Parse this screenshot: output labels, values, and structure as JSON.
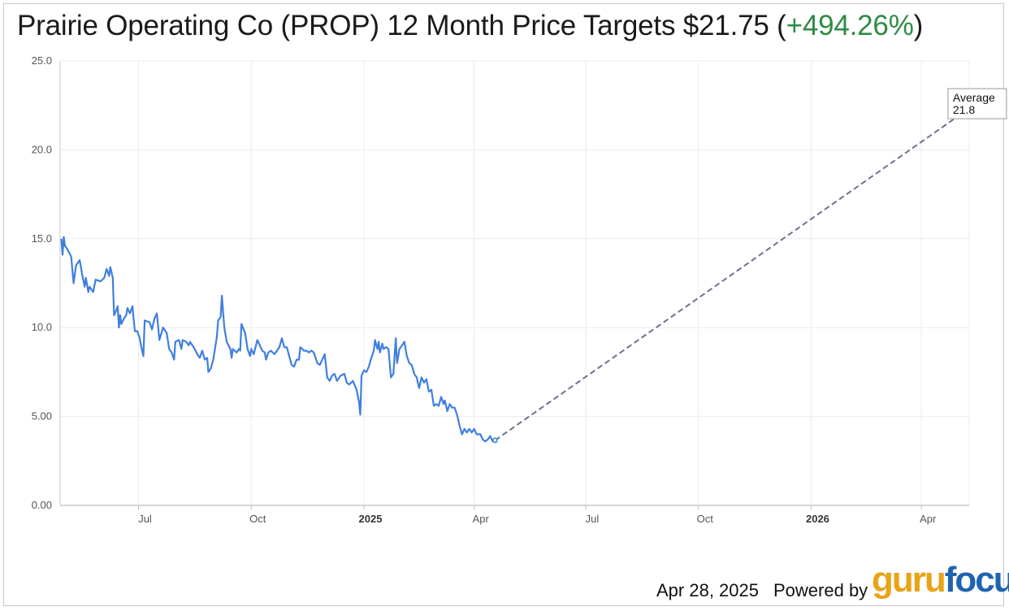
{
  "header": {
    "title_main": "Prairie Operating Co (PROP) 12 Month Price Targets $21.75 (",
    "title_pct": "+494.26%",
    "title_close": ")"
  },
  "footer": {
    "date": "Apr 28, 2025",
    "powered_by": "Powered by",
    "logo_part1": "guru",
    "logo_part2": "focus"
  },
  "colors": {
    "price_line": "#3f7fe0",
    "target_line": "#6b7390",
    "grid": "#ececec",
    "positive": "#2e8b46"
  },
  "chart_data": {
    "type": "line",
    "ylim": [
      0,
      25
    ],
    "y_ticks": [
      "0.00",
      "5.00",
      "10.0",
      "15.0",
      "20.0",
      "25.0"
    ],
    "xlim": [
      "2024-04-28",
      "2026-05-10"
    ],
    "x_ticks": [
      {
        "date": "2024-07-01",
        "label": "Jul",
        "bold": false
      },
      {
        "date": "2024-10-01",
        "label": "Oct",
        "bold": false
      },
      {
        "date": "2025-01-01",
        "label": "2025",
        "bold": true
      },
      {
        "date": "2025-04-01",
        "label": "Apr",
        "bold": false
      },
      {
        "date": "2025-07-01",
        "label": "Jul",
        "bold": false
      },
      {
        "date": "2025-10-01",
        "label": "Oct",
        "bold": false
      },
      {
        "date": "2026-01-01",
        "label": "2026",
        "bold": true
      },
      {
        "date": "2026-04-01",
        "label": "Apr",
        "bold": false
      }
    ],
    "grid": true,
    "series": [
      {
        "values": [
          [
            "2024-04-29",
            15.0
          ],
          [
            "2024-04-30",
            14.1
          ],
          [
            "2024-05-01",
            15.1
          ],
          [
            "2024-05-02",
            14.6
          ],
          [
            "2024-05-04",
            14.4
          ],
          [
            "2024-05-07",
            14.0
          ],
          [
            "2024-05-09",
            12.5
          ],
          [
            "2024-05-11",
            13.5
          ],
          [
            "2024-05-14",
            13.8
          ],
          [
            "2024-05-16",
            13.0
          ],
          [
            "2024-05-18",
            12.3
          ],
          [
            "2024-05-19",
            12.8
          ],
          [
            "2024-05-21",
            12.0
          ],
          [
            "2024-05-22",
            12.3
          ],
          [
            "2024-05-24",
            12.1
          ],
          [
            "2024-05-25",
            12.0
          ],
          [
            "2024-05-27",
            12.7
          ],
          [
            "2024-05-31",
            12.6
          ],
          [
            "2024-06-03",
            12.8
          ],
          [
            "2024-06-05",
            13.3
          ],
          [
            "2024-06-07",
            12.9
          ],
          [
            "2024-06-08",
            13.4
          ],
          [
            "2024-06-10",
            12.8
          ],
          [
            "2024-06-11",
            10.7
          ],
          [
            "2024-06-13",
            11.0
          ],
          [
            "2024-06-14",
            11.2
          ],
          [
            "2024-06-15",
            10.0
          ],
          [
            "2024-06-16",
            10.7
          ],
          [
            "2024-06-17",
            10.2
          ],
          [
            "2024-06-19",
            10.5
          ],
          [
            "2024-06-21",
            10.7
          ],
          [
            "2024-06-22",
            11.1
          ],
          [
            "2024-06-24",
            10.8
          ],
          [
            "2024-06-26",
            11.2
          ],
          [
            "2024-06-28",
            9.8
          ],
          [
            "2024-06-30",
            9.8
          ],
          [
            "2024-07-02",
            9.4
          ],
          [
            "2024-07-03",
            9.0
          ],
          [
            "2024-07-05",
            8.4
          ],
          [
            "2024-07-06",
            10.4
          ],
          [
            "2024-07-10",
            10.3
          ],
          [
            "2024-07-12",
            9.9
          ],
          [
            "2024-07-14",
            10.5
          ],
          [
            "2024-07-16",
            10.8
          ],
          [
            "2024-07-18",
            9.3
          ],
          [
            "2024-07-21",
            10.0
          ],
          [
            "2024-07-24",
            9.7
          ],
          [
            "2024-07-26",
            8.8
          ],
          [
            "2024-07-28",
            8.6
          ],
          [
            "2024-07-30",
            8.2
          ],
          [
            "2024-07-31",
            9.2
          ],
          [
            "2024-08-03",
            9.3
          ],
          [
            "2024-08-05",
            8.8
          ],
          [
            "2024-08-06",
            9.3
          ],
          [
            "2024-08-09",
            9.2
          ],
          [
            "2024-08-11",
            9.0
          ],
          [
            "2024-08-12",
            9.2
          ],
          [
            "2024-08-15",
            8.9
          ],
          [
            "2024-08-18",
            8.5
          ],
          [
            "2024-08-20",
            8.3
          ],
          [
            "2024-08-22",
            8.7
          ],
          [
            "2024-08-24",
            8.2
          ],
          [
            "2024-08-26",
            8.3
          ],
          [
            "2024-08-27",
            7.5
          ],
          [
            "2024-08-29",
            7.7
          ],
          [
            "2024-08-31",
            8.2
          ],
          [
            "2024-09-03",
            9.5
          ],
          [
            "2024-09-04",
            10.4
          ],
          [
            "2024-09-06",
            10.6
          ],
          [
            "2024-09-07",
            11.8
          ],
          [
            "2024-09-09",
            10.0
          ],
          [
            "2024-09-11",
            9.2
          ],
          [
            "2024-09-14",
            8.8
          ],
          [
            "2024-09-15",
            8.3
          ],
          [
            "2024-09-16",
            8.8
          ],
          [
            "2024-09-19",
            8.6
          ],
          [
            "2024-09-21",
            8.8
          ],
          [
            "2024-09-22",
            8.7
          ],
          [
            "2024-09-23",
            10.2
          ],
          [
            "2024-09-26",
            9.7
          ],
          [
            "2024-09-28",
            8.8
          ],
          [
            "2024-09-30",
            8.4
          ],
          [
            "2024-10-01",
            8.8
          ],
          [
            "2024-10-03",
            8.5
          ],
          [
            "2024-10-06",
            9.3
          ],
          [
            "2024-10-10",
            8.7
          ],
          [
            "2024-10-12",
            8.6
          ],
          [
            "2024-10-13",
            8.2
          ],
          [
            "2024-10-15",
            8.6
          ],
          [
            "2024-10-17",
            8.7
          ],
          [
            "2024-10-20",
            8.5
          ],
          [
            "2024-10-22",
            8.7
          ],
          [
            "2024-10-24",
            8.9
          ],
          [
            "2024-10-26",
            9.4
          ],
          [
            "2024-10-28",
            8.9
          ],
          [
            "2024-10-30",
            8.9
          ],
          [
            "2024-11-01",
            8.4
          ],
          [
            "2024-11-03",
            7.9
          ],
          [
            "2024-11-05",
            7.8
          ],
          [
            "2024-11-07",
            8.2
          ],
          [
            "2024-11-09",
            8.2
          ],
          [
            "2024-11-10",
            8.9
          ],
          [
            "2024-11-13",
            8.7
          ],
          [
            "2024-11-15",
            8.7
          ],
          [
            "2024-11-17",
            8.6
          ],
          [
            "2024-11-19",
            8.7
          ],
          [
            "2024-11-21",
            8.6
          ],
          [
            "2024-11-24",
            8.0
          ],
          [
            "2024-11-26",
            7.9
          ],
          [
            "2024-11-28",
            8.2
          ],
          [
            "2024-11-30",
            8.5
          ],
          [
            "2024-12-02",
            7.2
          ],
          [
            "2024-12-04",
            7.0
          ],
          [
            "2024-12-06",
            7.3
          ],
          [
            "2024-12-08",
            7.4
          ],
          [
            "2024-12-10",
            7.0
          ],
          [
            "2024-12-13",
            7.3
          ],
          [
            "2024-12-16",
            7.4
          ],
          [
            "2024-12-18",
            6.9
          ],
          [
            "2024-12-20",
            6.8
          ],
          [
            "2024-12-23",
            7.0
          ],
          [
            "2024-12-26",
            6.5
          ],
          [
            "2024-12-28",
            5.8
          ],
          [
            "2024-12-29",
            5.1
          ],
          [
            "2024-12-30",
            7.3
          ],
          [
            "2025-01-01",
            7.6
          ],
          [
            "2025-01-03",
            7.5
          ],
          [
            "2025-01-05",
            7.8
          ],
          [
            "2025-01-07",
            8.3
          ],
          [
            "2025-01-09",
            8.7
          ],
          [
            "2025-01-10",
            9.3
          ],
          [
            "2025-01-12",
            8.8
          ],
          [
            "2025-01-13",
            9.2
          ],
          [
            "2025-01-14",
            8.6
          ],
          [
            "2025-01-16",
            9.1
          ],
          [
            "2025-01-17",
            8.8
          ],
          [
            "2025-01-19",
            8.9
          ],
          [
            "2025-01-21",
            8.8
          ],
          [
            "2025-01-23",
            7.2
          ],
          [
            "2025-01-25",
            7.4
          ],
          [
            "2025-01-27",
            9.4
          ],
          [
            "2025-01-28",
            8.0
          ],
          [
            "2025-01-30",
            8.8
          ],
          [
            "2025-02-01",
            9.0
          ],
          [
            "2025-02-03",
            9.2
          ],
          [
            "2025-02-05",
            8.4
          ],
          [
            "2025-02-07",
            8.0
          ],
          [
            "2025-02-09",
            7.9
          ],
          [
            "2025-02-11",
            7.4
          ],
          [
            "2025-02-13",
            7.2
          ],
          [
            "2025-02-15",
            6.6
          ],
          [
            "2025-02-17",
            7.2
          ],
          [
            "2025-02-19",
            6.9
          ],
          [
            "2025-02-21",
            7.1
          ],
          [
            "2025-02-23",
            6.4
          ],
          [
            "2025-02-25",
            6.5
          ],
          [
            "2025-02-27",
            5.6
          ],
          [
            "2025-03-01",
            5.7
          ],
          [
            "2025-03-03",
            5.6
          ],
          [
            "2025-03-05",
            6.1
          ],
          [
            "2025-03-07",
            5.7
          ],
          [
            "2025-03-08",
            5.9
          ],
          [
            "2025-03-10",
            5.3
          ],
          [
            "2025-03-12",
            5.7
          ],
          [
            "2025-03-14",
            5.5
          ],
          [
            "2025-03-16",
            5.5
          ],
          [
            "2025-03-18",
            5.1
          ],
          [
            "2025-03-20",
            4.5
          ],
          [
            "2025-03-22",
            4.0
          ],
          [
            "2025-03-24",
            4.3
          ],
          [
            "2025-03-26",
            4.1
          ],
          [
            "2025-03-28",
            4.3
          ],
          [
            "2025-03-30",
            4.1
          ],
          [
            "2025-04-01",
            4.3
          ],
          [
            "2025-04-03",
            4.0
          ],
          [
            "2025-04-06",
            4.0
          ],
          [
            "2025-04-08",
            3.7
          ],
          [
            "2025-04-10",
            3.6
          ],
          [
            "2025-04-12",
            3.7
          ],
          [
            "2025-04-14",
            3.9
          ],
          [
            "2025-04-16",
            3.6
          ],
          [
            "2025-04-18",
            3.7
          ]
        ]
      },
      {
        "values": [
          [
            "2025-04-18",
            3.66
          ],
          [
            "2026-04-28",
            21.75
          ]
        ]
      }
    ],
    "annotation": {
      "label": "Average",
      "value": "21.8"
    }
  }
}
